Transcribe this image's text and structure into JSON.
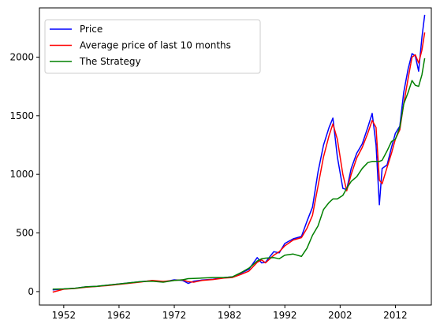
{
  "chart_data": {
    "type": "line",
    "title": "",
    "xlabel": "",
    "ylabel": "",
    "xlim": [
      1947.6,
      2018.5
    ],
    "ylim": [
      -115,
      2420
    ],
    "grid": false,
    "legend_position": "top-left",
    "x_ticks": [
      "1952",
      "1962",
      "1972",
      "1982",
      "1992",
      "2002",
      "2012"
    ],
    "y_ticks": [
      "0",
      "500",
      "1000",
      "1500",
      "2000"
    ],
    "series": [
      {
        "name": "Price",
        "color": "#0000ff",
        "x": [
          1950.0,
          1952.0,
          1954.0,
          1956.0,
          1958.0,
          1960.0,
          1962.0,
          1964.0,
          1966.0,
          1968.0,
          1970.0,
          1972.0,
          1973.5,
          1974.5,
          1975.5,
          1977.0,
          1979.0,
          1981.0,
          1982.5,
          1984.0,
          1985.5,
          1987.0,
          1987.8,
          1988.5,
          1990.0,
          1991.0,
          1992.0,
          1993.5,
          1995.0,
          1996.0,
          1997.0,
          1998.0,
          1999.0,
          2000.0,
          2000.7,
          2001.5,
          2002.5,
          2003.2,
          2004.0,
          2005.0,
          2006.0,
          2007.0,
          2007.8,
          2008.5,
          2009.1,
          2009.6,
          2010.5,
          2011.3,
          2012.0,
          2012.8,
          2013.5,
          2014.3,
          2015.0,
          2015.6,
          2016.2,
          2016.8,
          2017.3
        ],
        "y": [
          15,
          22,
          28,
          40,
          45,
          55,
          65,
          75,
          85,
          93,
          82,
          100,
          95,
          70,
          88,
          98,
          105,
          120,
          125,
          155,
          190,
          290,
          245,
          250,
          340,
          330,
          410,
          450,
          470,
          600,
          720,
          1020,
          1250,
          1400,
          1480,
          1150,
          880,
          870,
          1050,
          1180,
          1260,
          1400,
          1520,
          1250,
          740,
          1050,
          1080,
          1230,
          1350,
          1410,
          1700,
          1900,
          2030,
          2010,
          1880,
          2170,
          2360
        ]
      },
      {
        "name": "Average price of last 10 months",
        "color": "#ff0000",
        "x": [
          1950.0,
          1952.0,
          1954.0,
          1956.0,
          1958.0,
          1960.0,
          1962.0,
          1964.0,
          1966.0,
          1968.0,
          1970.0,
          1972.0,
          1973.5,
          1974.5,
          1975.5,
          1977.0,
          1979.0,
          1981.0,
          1982.5,
          1984.0,
          1985.5,
          1987.0,
          1987.8,
          1988.5,
          1990.0,
          1991.0,
          1992.0,
          1993.5,
          1995.0,
          1996.0,
          1997.0,
          1998.0,
          1999.0,
          2000.0,
          2000.7,
          2001.5,
          2002.5,
          2003.2,
          2004.0,
          2005.0,
          2006.0,
          2007.0,
          2007.8,
          2008.5,
          2009.1,
          2009.6,
          2010.5,
          2011.3,
          2012.0,
          2012.8,
          2013.5,
          2014.3,
          2015.0,
          2015.6,
          2016.2,
          2016.8,
          2017.3
        ],
        "y": [
          -5,
          20,
          26,
          37,
          44,
          52,
          62,
          72,
          82,
          95,
          87,
          95,
          100,
          85,
          80,
          95,
          103,
          115,
          120,
          145,
          175,
          250,
          270,
          245,
          310,
          340,
          390,
          440,
          460,
          540,
          650,
          900,
          1150,
          1330,
          1430,
          1300,
          1000,
          860,
          1000,
          1140,
          1230,
          1350,
          1460,
          1400,
          950,
          920,
          1060,
          1180,
          1300,
          1380,
          1600,
          1820,
          2000,
          2020,
          1950,
          2060,
          2210
        ]
      },
      {
        "name": "The Strategy",
        "color": "#008000",
        "x": [
          1950.0,
          1952.0,
          1954.0,
          1956.0,
          1958.0,
          1960.0,
          1962.0,
          1964.0,
          1966.0,
          1968.0,
          1970.0,
          1972.0,
          1973.5,
          1974.5,
          1975.5,
          1977.0,
          1979.0,
          1981.0,
          1982.5,
          1984.0,
          1985.5,
          1987.0,
          1987.8,
          1988.5,
          1990.0,
          1991.0,
          1992.0,
          1993.5,
          1995.0,
          1996.0,
          1997.0,
          1998.0,
          1999.0,
          2000.0,
          2000.7,
          2001.5,
          2002.5,
          2003.2,
          2004.0,
          2005.0,
          2006.0,
          2007.0,
          2007.8,
          2008.5,
          2009.1,
          2009.6,
          2010.5,
          2011.3,
          2012.0,
          2012.8,
          2013.5,
          2014.3,
          2015.0,
          2015.6,
          2016.2,
          2016.8,
          2017.3
        ],
        "y": [
          20,
          23,
          28,
          40,
          45,
          55,
          65,
          75,
          85,
          88,
          80,
          95,
          100,
          110,
          112,
          115,
          120,
          120,
          125,
          160,
          200,
          260,
          280,
          285,
          290,
          280,
          310,
          320,
          300,
          370,
          480,
          560,
          700,
          760,
          790,
          790,
          820,
          880,
          940,
          980,
          1050,
          1100,
          1110,
          1110,
          1110,
          1120,
          1200,
          1280,
          1300,
          1400,
          1600,
          1700,
          1800,
          1760,
          1750,
          1850,
          1990
        ]
      }
    ]
  }
}
